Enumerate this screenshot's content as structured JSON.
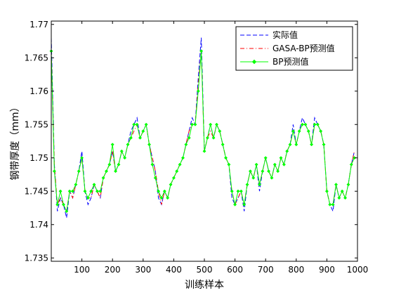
{
  "chart_data": {
    "type": "line",
    "title": "",
    "xlabel": "训练样本",
    "ylabel": "钢带厚度（mm）",
    "xlim": [
      0,
      1000
    ],
    "ylim": [
      1.7345,
      1.7705
    ],
    "x_ticks": [
      100,
      200,
      300,
      400,
      500,
      600,
      700,
      800,
      900,
      1000
    ],
    "y_ticks": [
      1.735,
      1.74,
      1.745,
      1.75,
      1.755,
      1.76,
      1.765,
      1.77
    ],
    "x_tick_labels": [
      "100",
      "200",
      "300",
      "400",
      "500",
      "600",
      "700",
      "800",
      "900",
      "1000"
    ],
    "y_tick_labels": [
      "1.735",
      "1.74",
      "1.745",
      "1.75",
      "1.755",
      "1.76",
      "1.765",
      "1.77"
    ],
    "grid": false,
    "legend_position": "top-right",
    "x_sample_step": 10,
    "series": [
      {
        "name": "实际值",
        "color": "#0000ff",
        "style": "dashed",
        "marker": "none",
        "values": [
          1.768,
          1.749,
          1.742,
          1.744,
          1.743,
          1.741,
          1.745,
          1.744,
          1.746,
          1.748,
          1.751,
          1.745,
          1.743,
          1.744,
          1.746,
          1.745,
          1.744,
          1.747,
          1.748,
          1.749,
          1.751,
          1.748,
          1.749,
          1.751,
          1.75,
          1.752,
          1.754,
          1.755,
          1.756,
          1.753,
          1.754,
          1.755,
          1.752,
          1.75,
          1.748,
          1.744,
          1.743,
          1.745,
          1.744,
          1.746,
          1.747,
          1.748,
          1.749,
          1.75,
          1.752,
          1.754,
          1.756,
          1.755,
          1.762,
          1.768,
          1.751,
          1.753,
          1.755,
          1.753,
          1.755,
          1.754,
          1.752,
          1.75,
          1.749,
          1.744,
          1.743,
          1.744,
          1.745,
          1.742,
          1.746,
          1.748,
          1.747,
          1.749,
          1.745,
          1.748,
          1.75,
          1.748,
          1.747,
          1.749,
          1.748,
          1.75,
          1.749,
          1.751,
          1.752,
          1.755,
          1.752,
          1.754,
          1.756,
          1.755,
          1.754,
          1.752,
          1.756,
          1.755,
          1.754,
          1.752,
          1.745,
          1.743,
          1.742,
          1.746,
          1.744,
          1.745,
          1.744,
          1.746,
          1.749,
          1.751
        ]
      },
      {
        "name": "GASA-BP预测值",
        "color": "#ff0000",
        "style": "dashdot",
        "marker": "none",
        "values": [
          1.766,
          1.749,
          1.743,
          1.744,
          1.743,
          1.742,
          1.745,
          1.744,
          1.746,
          1.748,
          1.75,
          1.745,
          1.744,
          1.744,
          1.746,
          1.745,
          1.744,
          1.747,
          1.748,
          1.749,
          1.751,
          1.748,
          1.749,
          1.751,
          1.75,
          1.752,
          1.753,
          1.754,
          1.755,
          1.753,
          1.754,
          1.755,
          1.752,
          1.75,
          1.748,
          1.745,
          1.743,
          1.745,
          1.744,
          1.746,
          1.747,
          1.748,
          1.749,
          1.75,
          1.752,
          1.754,
          1.755,
          1.755,
          1.761,
          1.766,
          1.751,
          1.753,
          1.754,
          1.753,
          1.755,
          1.754,
          1.752,
          1.75,
          1.749,
          1.745,
          1.743,
          1.744,
          1.745,
          1.743,
          1.746,
          1.748,
          1.747,
          1.749,
          1.746,
          1.748,
          1.75,
          1.748,
          1.747,
          1.749,
          1.748,
          1.75,
          1.749,
          1.751,
          1.752,
          1.754,
          1.752,
          1.754,
          1.755,
          1.755,
          1.754,
          1.752,
          1.755,
          1.755,
          1.754,
          1.752,
          1.745,
          1.743,
          1.743,
          1.746,
          1.744,
          1.745,
          1.744,
          1.746,
          1.749,
          1.751
        ]
      },
      {
        "name": "BP预测值",
        "color": "#00ff00",
        "style": "solid",
        "marker": "diamond",
        "values": [
          1.766,
          1.748,
          1.743,
          1.745,
          1.743,
          1.742,
          1.745,
          1.745,
          1.746,
          1.748,
          1.75,
          1.745,
          1.744,
          1.745,
          1.746,
          1.745,
          1.745,
          1.747,
          1.748,
          1.749,
          1.752,
          1.748,
          1.749,
          1.751,
          1.75,
          1.752,
          1.753,
          1.755,
          1.755,
          1.753,
          1.754,
          1.755,
          1.752,
          1.749,
          1.747,
          1.745,
          1.744,
          1.745,
          1.744,
          1.746,
          1.747,
          1.748,
          1.749,
          1.75,
          1.752,
          1.753,
          1.755,
          1.755,
          1.76,
          1.766,
          1.751,
          1.753,
          1.755,
          1.753,
          1.755,
          1.754,
          1.752,
          1.75,
          1.749,
          1.745,
          1.743,
          1.745,
          1.745,
          1.743,
          1.746,
          1.748,
          1.747,
          1.749,
          1.746,
          1.748,
          1.75,
          1.748,
          1.747,
          1.749,
          1.748,
          1.75,
          1.749,
          1.751,
          1.752,
          1.754,
          1.752,
          1.754,
          1.755,
          1.755,
          1.754,
          1.752,
          1.755,
          1.755,
          1.754,
          1.752,
          1.745,
          1.743,
          1.743,
          1.746,
          1.744,
          1.745,
          1.744,
          1.746,
          1.749,
          1.75
        ]
      }
    ]
  }
}
